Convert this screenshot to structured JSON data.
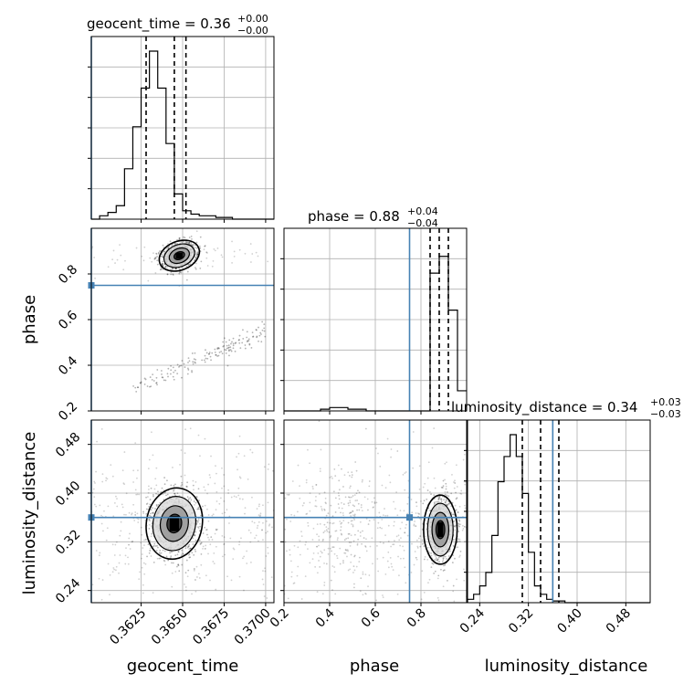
{
  "chart_data": {
    "type": "corner",
    "truth_color": "#4682b4",
    "line_color": "#000000",
    "grid": true,
    "parameters": [
      {
        "name": "geocent_time",
        "label": "geocent_time",
        "title_main": "geocent_time = 0.36",
        "title_plus": "+0.00",
        "title_minus": "−0.00",
        "range": [
          0.3595,
          0.3705
        ],
        "ticks": [
          0.3625,
          0.365,
          0.3675,
          0.37
        ],
        "tick_labels": [
          "0.3625",
          "0.3650",
          "0.3675",
          "0.3700"
        ],
        "truth": 0.3595,
        "quantiles": [
          0.3628,
          0.3645,
          0.3652
        ],
        "hist_bin_width": 0.0005,
        "hist": [
          0,
          0.02,
          0.04,
          0.08,
          0.3,
          0.55,
          0.78,
          1.0,
          0.78,
          0.45,
          0.15,
          0.05,
          0.03,
          0.02,
          0.02,
          0.01,
          0.01,
          0.0,
          0.0,
          0.0,
          0.0,
          0.0
        ]
      },
      {
        "name": "phase",
        "label": "phase",
        "title_main": "phase = 0.88",
        "title_plus": "+0.04",
        "title_minus": "−0.04",
        "range": [
          0.2,
          1.0
        ],
        "ticks": [
          0.2,
          0.4,
          0.6,
          0.8
        ],
        "tick_labels": [
          "0.2",
          "0.4",
          "0.6",
          "0.8"
        ],
        "truth": 0.75,
        "quantiles": [
          0.84,
          0.88,
          0.92
        ],
        "hist_bin_width": 0.04,
        "hist": [
          0,
          0,
          0,
          0,
          0.01,
          0.02,
          0.02,
          0.01,
          0.01,
          0,
          0,
          0,
          0,
          0,
          0,
          0,
          0.82,
          0.92,
          0.6,
          0.12
        ]
      },
      {
        "name": "luminosity_distance",
        "label": "luminosity_distance",
        "title_main": "luminosity_distance = 0.34",
        "title_plus": "+0.03",
        "title_minus": "−0.03",
        "range": [
          0.22,
          0.52
        ],
        "ticks": [
          0.24,
          0.32,
          0.4,
          0.48
        ],
        "tick_labels": [
          "0.24",
          "0.32",
          "0.40",
          "0.48"
        ],
        "truth": 0.36,
        "quantiles": [
          0.31,
          0.34,
          0.37
        ],
        "hist_bin_width": 0.01,
        "hist": [
          0.02,
          0.05,
          0.1,
          0.18,
          0.4,
          0.72,
          0.87,
          1.0,
          0.87,
          0.65,
          0.3,
          0.1,
          0.05,
          0.02,
          0.01,
          0.01,
          0,
          0,
          0,
          0,
          0,
          0,
          0,
          0,
          0,
          0,
          0,
          0,
          0,
          0
        ]
      }
    ],
    "scatter_2d": [
      {
        "x": "geocent_time",
        "y": "phase",
        "main_cluster": {
          "cx": 0.3648,
          "cy": 0.88,
          "sx": 0.0006,
          "sy": 0.03,
          "rot": 0.55
        },
        "band": {
          "x_from": 0.362,
          "x_to": 0.37,
          "y_from": 0.3,
          "y_to": 0.55
        }
      },
      {
        "x": "geocent_time",
        "y": "luminosity_distance",
        "main_cluster": {
          "cx": 0.3645,
          "cy": 0.35,
          "sx": 0.0008,
          "sy": 0.028,
          "rot": -0.25
        }
      },
      {
        "x": "phase",
        "y": "luminosity_distance",
        "main_cluster": {
          "cx": 0.885,
          "cy": 0.34,
          "sx": 0.035,
          "sy": 0.027,
          "rot": 0.0
        },
        "secondary_cluster": {
          "cx": 0.48,
          "cy": 0.36,
          "sx": 0.06,
          "sy": 0.05
        }
      }
    ]
  }
}
